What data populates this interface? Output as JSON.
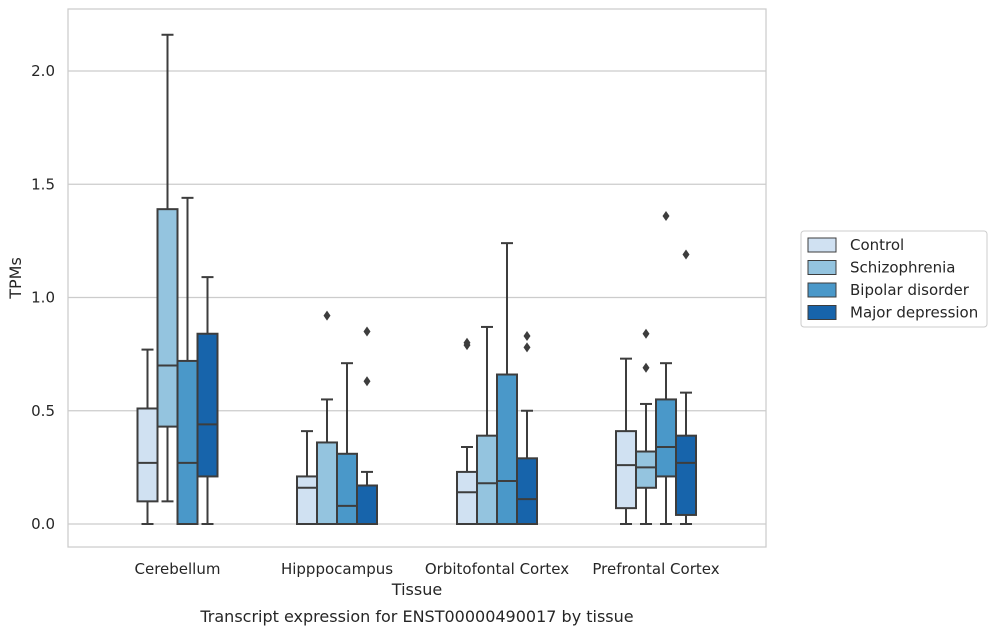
{
  "chart_data": {
    "type": "boxplot",
    "title": "",
    "caption": "Transcript expression for ENST00000490017 by tissue",
    "xlabel": "Tissue",
    "ylabel": "TPMs",
    "ylim": [
      -0.105,
      2.3
    ],
    "yticks": [
      "0.0",
      "0.5",
      "1.0",
      "1.5",
      "2.0"
    ],
    "grid": "horizontal",
    "legend_position": "right",
    "categories": [
      "Cerebellum",
      "Hipppocampus",
      "Orbitofontal Cortex",
      "Prefrontal Cortex"
    ],
    "series": [
      {
        "name": "Control",
        "color": "#d0e1f2",
        "boxes": [
          {
            "q1": 0.1,
            "median": 0.27,
            "q3": 0.51,
            "whisker_low": 0.0,
            "whisker_high": 0.77,
            "outliers": []
          },
          {
            "q1": 0.0,
            "median": 0.16,
            "q3": 0.21,
            "whisker_low": 0.0,
            "whisker_high": 0.41,
            "outliers": []
          },
          {
            "q1": 0.0,
            "median": 0.14,
            "q3": 0.23,
            "whisker_low": 0.0,
            "whisker_high": 0.34,
            "outliers": [
              0.79,
              0.8
            ]
          },
          {
            "q1": 0.07,
            "median": 0.26,
            "q3": 0.41,
            "whisker_low": 0.0,
            "whisker_high": 0.73,
            "outliers": []
          }
        ]
      },
      {
        "name": "Schizophrenia",
        "color": "#94c4df",
        "boxes": [
          {
            "q1": 0.43,
            "median": 0.7,
            "q3": 1.39,
            "whisker_low": 0.1,
            "whisker_high": 2.16,
            "outliers": []
          },
          {
            "q1": 0.0,
            "median": 0.0,
            "q3": 0.36,
            "whisker_low": 0.0,
            "whisker_high": 0.55,
            "outliers": [
              0.92
            ]
          },
          {
            "q1": 0.0,
            "median": 0.18,
            "q3": 0.39,
            "whisker_low": 0.0,
            "whisker_high": 0.87,
            "outliers": []
          },
          {
            "q1": 0.16,
            "median": 0.25,
            "q3": 0.32,
            "whisker_low": 0.0,
            "whisker_high": 0.53,
            "outliers": [
              0.69,
              0.84
            ]
          }
        ]
      },
      {
        "name": "Bipolar disorder",
        "color": "#4a98c9",
        "boxes": [
          {
            "q1": 0.0,
            "median": 0.27,
            "q3": 0.72,
            "whisker_low": 0.0,
            "whisker_high": 1.44,
            "outliers": []
          },
          {
            "q1": 0.0,
            "median": 0.08,
            "q3": 0.31,
            "whisker_low": 0.0,
            "whisker_high": 0.71,
            "outliers": []
          },
          {
            "q1": 0.0,
            "median": 0.19,
            "q3": 0.66,
            "whisker_low": 0.0,
            "whisker_high": 1.24,
            "outliers": []
          },
          {
            "q1": 0.21,
            "median": 0.34,
            "q3": 0.55,
            "whisker_low": 0.0,
            "whisker_high": 0.71,
            "outliers": [
              1.36
            ]
          }
        ]
      },
      {
        "name": "Major depression",
        "color": "#1764ab",
        "boxes": [
          {
            "q1": 0.21,
            "median": 0.44,
            "q3": 0.84,
            "whisker_low": 0.0,
            "whisker_high": 1.09,
            "outliers": []
          },
          {
            "q1": 0.0,
            "median": 0.0,
            "q3": 0.17,
            "whisker_low": 0.0,
            "whisker_high": 0.23,
            "outliers": [
              0.63,
              0.85
            ]
          },
          {
            "q1": 0.0,
            "median": 0.11,
            "q3": 0.29,
            "whisker_low": 0.0,
            "whisker_high": 0.5,
            "outliers": [
              0.78,
              0.83
            ]
          },
          {
            "q1": 0.04,
            "median": 0.27,
            "q3": 0.39,
            "whisker_low": 0.0,
            "whisker_high": 0.58,
            "outliers": [
              1.19
            ]
          }
        ]
      }
    ]
  }
}
